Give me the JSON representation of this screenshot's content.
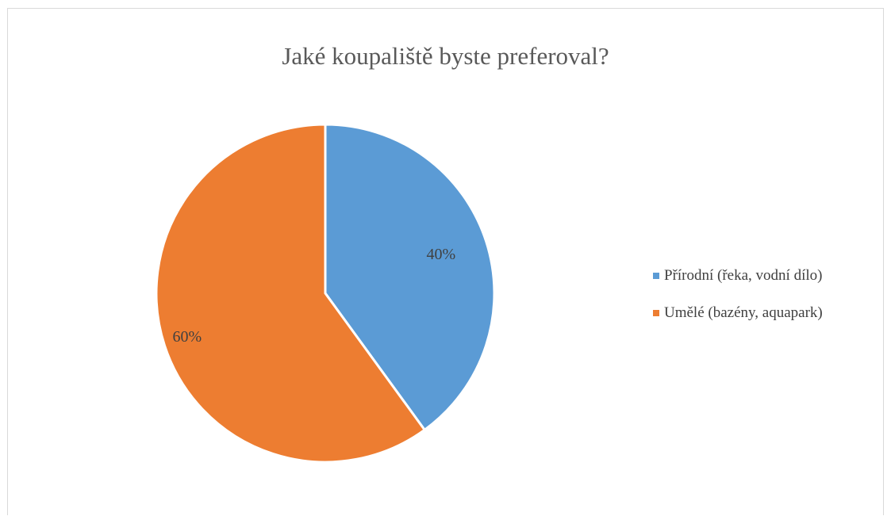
{
  "chart_data": {
    "type": "pie",
    "title": "Jaké koupaliště byste preferoval?",
    "categories": [
      "Přírodní (řeka, vodní dílo)",
      "Umělé (bazény, aquapark)"
    ],
    "values": [
      40,
      60
    ],
    "data_labels": [
      "40%",
      "60%"
    ],
    "colors": [
      "#5b9bd5",
      "#ed7d31"
    ],
    "legend_position": "right"
  }
}
